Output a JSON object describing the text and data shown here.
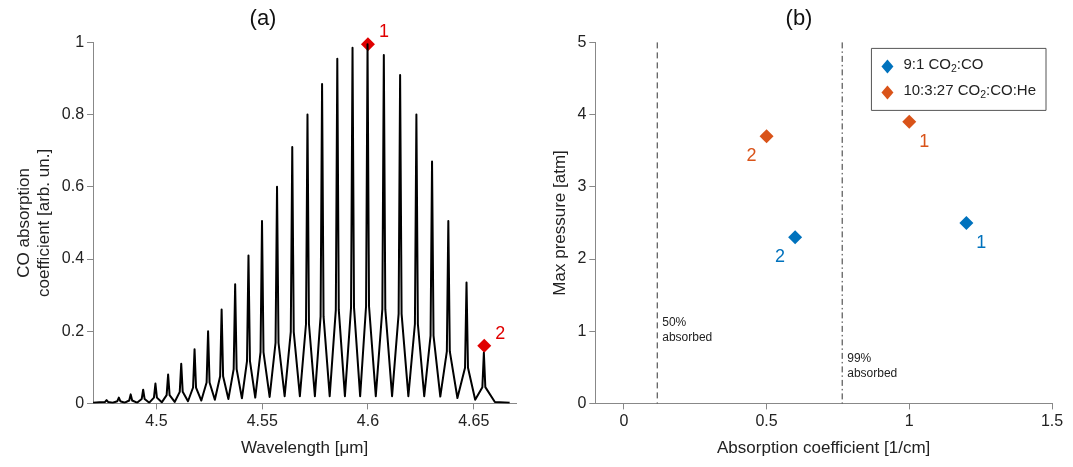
{
  "chart_data": [
    {
      "type": "line",
      "title": "(a)",
      "xlabel": "Wavelength [μm]",
      "ylabel": "CO absorption\ncoefficient [arb. un.]",
      "xlim": [
        4.47,
        4.67
      ],
      "ylim": [
        0,
        1
      ],
      "xticks": [
        4.5,
        4.55,
        4.6,
        4.65
      ],
      "yticks": [
        0,
        0.2,
        0.4,
        0.6,
        0.8,
        1
      ],
      "grid": false,
      "series": [
        {
          "color": "#000000",
          "x": [
            4.47,
            4.473,
            4.4757,
            4.4764,
            4.4771,
            4.4793,
            4.4815,
            4.4822,
            4.4829,
            4.485,
            4.4871,
            4.4878,
            4.4885,
            4.4908,
            4.493,
            4.4937,
            4.4944,
            4.4966,
            4.4988,
            4.4995,
            4.5002,
            4.5025,
            4.5048,
            4.5055,
            4.5062,
            4.5086,
            4.511,
            4.5117,
            4.5124,
            4.5149,
            4.5173,
            4.518,
            4.5187,
            4.5212,
            4.5237,
            4.5244,
            4.5251,
            4.5276,
            4.5301,
            4.5308,
            4.5315,
            4.534,
            4.5365,
            4.5372,
            4.5379,
            4.5404,
            4.5428,
            4.5435,
            4.5442,
            4.5467,
            4.5492,
            4.5499,
            4.5506,
            4.5535,
            4.5563,
            4.557,
            4.5577,
            4.5606,
            4.5635,
            4.5642,
            4.5649,
            4.5678,
            4.5707,
            4.5714,
            4.5721,
            4.5749,
            4.5776,
            4.5783,
            4.579,
            4.5819,
            4.5848,
            4.5855,
            4.5862,
            4.5891,
            4.592,
            4.5927,
            4.5934,
            4.5963,
            4.5991,
            4.5998,
            4.6005,
            4.6037,
            4.6068,
            4.6075,
            4.6082,
            4.6114,
            4.6145,
            4.6152,
            4.6159,
            4.6191,
            4.6222,
            4.6229,
            4.6236,
            4.6266,
            4.6296,
            4.6303,
            4.631,
            4.6342,
            4.6373,
            4.638,
            4.6387,
            4.6423,
            4.6459,
            4.6466,
            4.6473,
            4.6507,
            4.6541,
            4.6548,
            4.6555,
            4.66,
            4.667
          ],
          "values": [
            0.002,
            0.003,
            0.004,
            0.009,
            0.004,
            0.002,
            0.006,
            0.016,
            0.006,
            0.002,
            0.008,
            0.025,
            0.008,
            0.002,
            0.012,
            0.038,
            0.012,
            0.002,
            0.016,
            0.055,
            0.016,
            0.003,
            0.023,
            0.08,
            0.023,
            0.004,
            0.032,
            0.11,
            0.032,
            0.006,
            0.044,
            0.15,
            0.044,
            0.008,
            0.058,
            0.2,
            0.058,
            0.01,
            0.075,
            0.26,
            0.075,
            0.012,
            0.095,
            0.33,
            0.095,
            0.014,
            0.117,
            0.41,
            0.117,
            0.016,
            0.142,
            0.505,
            0.142,
            0.018,
            0.168,
            0.6,
            0.168,
            0.02,
            0.198,
            0.71,
            0.198,
            0.02,
            0.22,
            0.8,
            0.22,
            0.02,
            0.241,
            0.885,
            0.241,
            0.02,
            0.259,
            0.955,
            0.259,
            0.02,
            0.266,
            0.985,
            0.266,
            0.02,
            0.269,
            0.995,
            0.269,
            0.02,
            0.261,
            0.965,
            0.261,
            0.02,
            0.248,
            0.91,
            0.248,
            0.02,
            0.22,
            0.8,
            0.22,
            0.02,
            0.188,
            0.67,
            0.188,
            0.019,
            0.144,
            0.505,
            0.144,
            0.015,
            0.099,
            0.335,
            0.099,
            0.01,
            0.045,
            0.14,
            0.045,
            0.004,
            0.002
          ]
        },
        {
          "type": "scatter",
          "marker": "diamond",
          "color": "#e00000",
          "x": [
            4.6,
            4.655
          ],
          "values": [
            0.995,
            0.16
          ]
        }
      ],
      "annotations": [
        {
          "text": "1",
          "x": 4.6,
          "y": 0.995
        },
        {
          "text": "2",
          "x": 4.655,
          "y": 0.16
        }
      ]
    },
    {
      "type": "scatter",
      "title": "(b)",
      "xlabel": "Absorption coefficient [1/cm]",
      "ylabel": "Max pressure [atm]",
      "xlim": [
        -0.1,
        1.5
      ],
      "ylim": [
        0,
        5
      ],
      "xticks": [
        0,
        0.5,
        1,
        1.5
      ],
      "yticks": [
        0,
        1,
        2,
        3,
        4,
        5
      ],
      "grid": false,
      "marker": "diamond",
      "legend": "top right",
      "series": [
        {
          "name": "9:1 CO$_{2}$:CO",
          "color": "#0072bd",
          "x": [
            1.2,
            0.6
          ],
          "values": [
            2.5,
            2.3
          ]
        },
        {
          "name": "10:3:27 CO$_{2}$:CO:He",
          "color": "#d95319",
          "x": [
            1.0,
            0.5
          ],
          "values": [
            3.9,
            3.7
          ]
        }
      ],
      "ref_lines": [
        {
          "axis": "x",
          "value": 0.117,
          "label": "50%\nabsorbed",
          "line_style": "dashed",
          "color": "#333333"
        },
        {
          "axis": "x",
          "value": 0.765,
          "label": "99%\nabsorbed",
          "line_style": "dotted",
          "color": "#333333"
        }
      ],
      "annotations": [
        {
          "text": "1",
          "x": 1.2,
          "y": 2.5
        },
        {
          "text": "2",
          "x": 0.6,
          "y": 2.3
        },
        {
          "text": "1",
          "x": 1.0,
          "y": 3.9
        },
        {
          "text": "2",
          "x": 0.5,
          "y": 3.7
        }
      ]
    }
  ]
}
